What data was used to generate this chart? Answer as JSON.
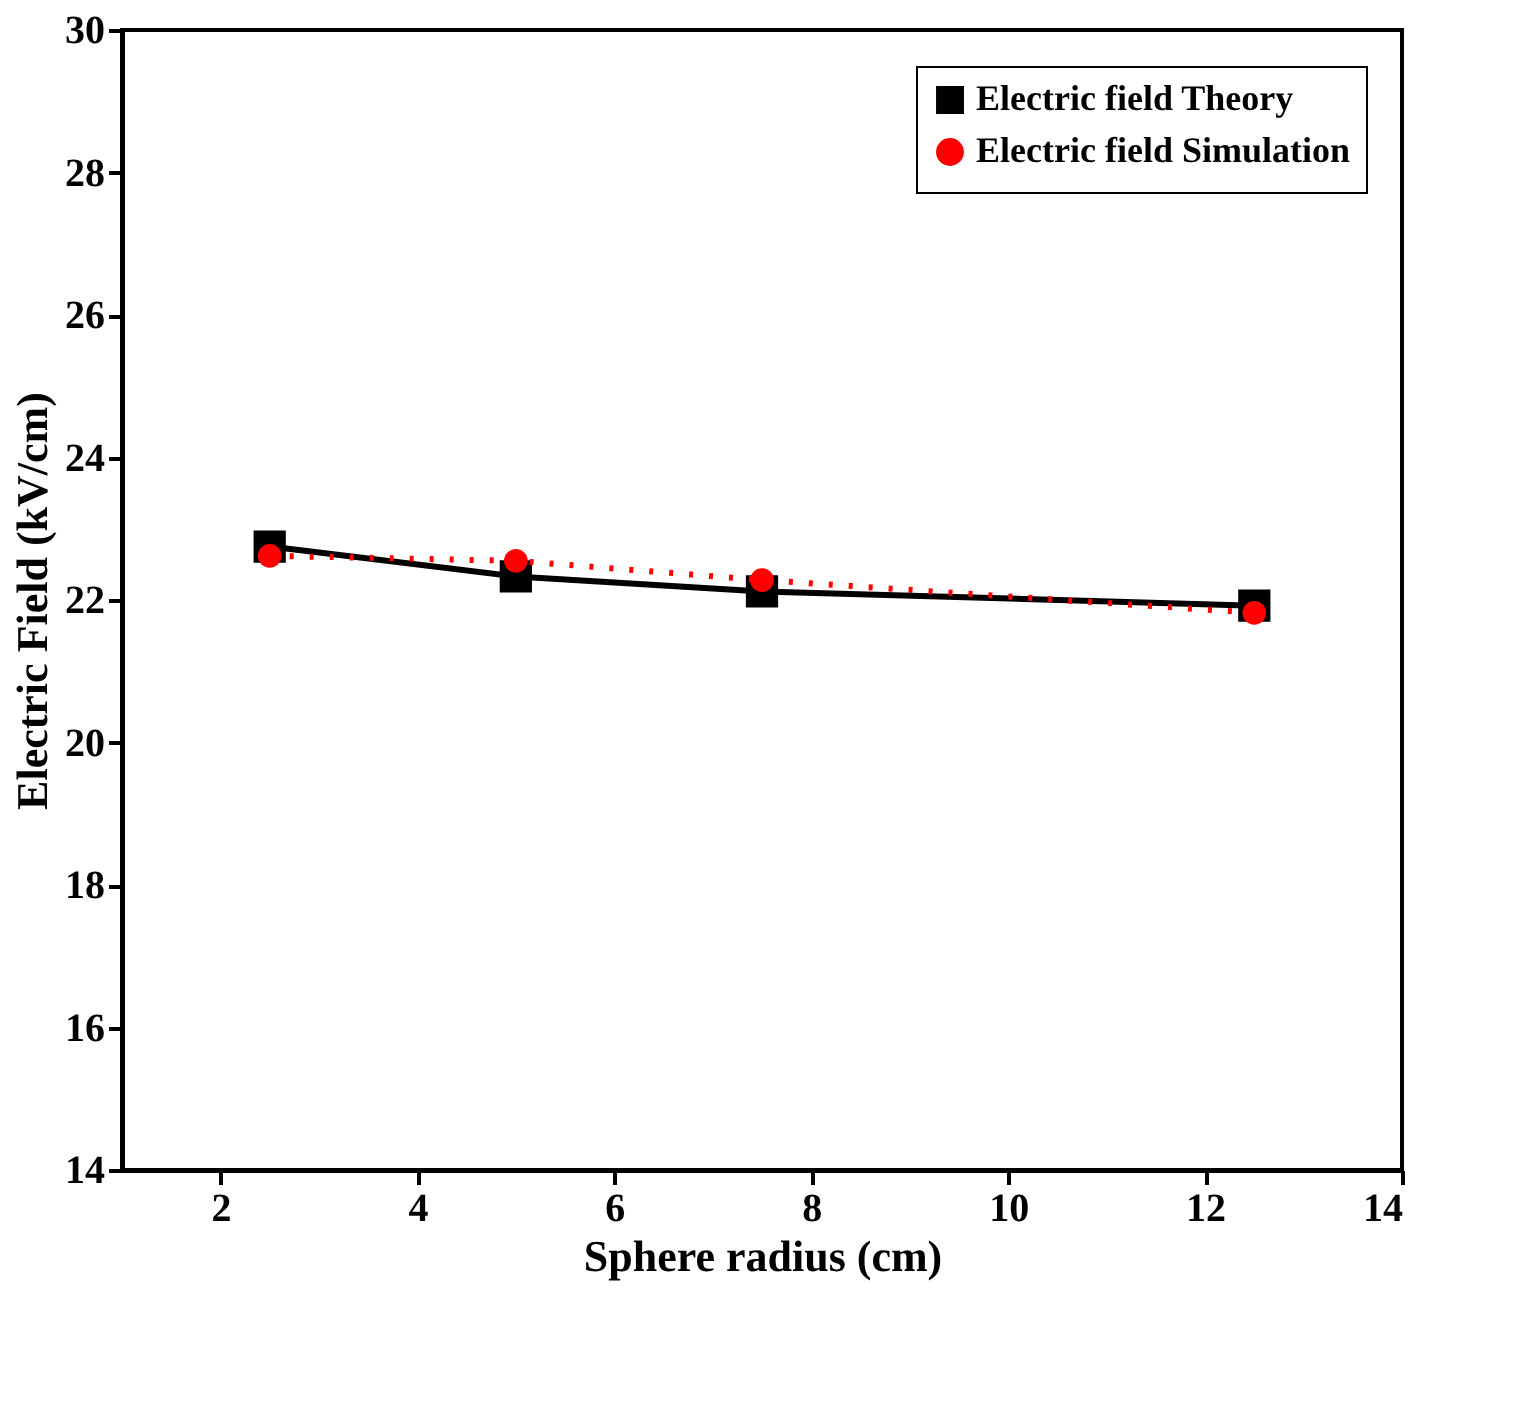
{
  "chart_data": {
    "type": "line",
    "xlabel": "Sphere radius (cm)",
    "ylabel": "Electric Field (kV/cm)",
    "x": [
      2.5,
      5,
      7.5,
      12.5
    ],
    "xlim": [
      1,
      14
    ],
    "xticks": [
      2,
      4,
      6,
      8,
      10,
      12,
      14
    ],
    "ylim": [
      14,
      30
    ],
    "yticks": [
      14,
      16,
      18,
      20,
      22,
      24,
      26,
      28,
      30
    ],
    "grid": false,
    "legend": "top right",
    "series": [
      {
        "name": "Electric field Theory",
        "color": "#000000",
        "values": [
          22.75,
          22.33,
          22.12,
          21.92
        ],
        "marker": "square",
        "line_style": "solid"
      },
      {
        "name": "Electric field Simulation",
        "color": "#ff0000",
        "values": [
          22.62,
          22.55,
          22.28,
          21.82
        ],
        "marker": "circle",
        "line_style": "dotted"
      }
    ]
  }
}
